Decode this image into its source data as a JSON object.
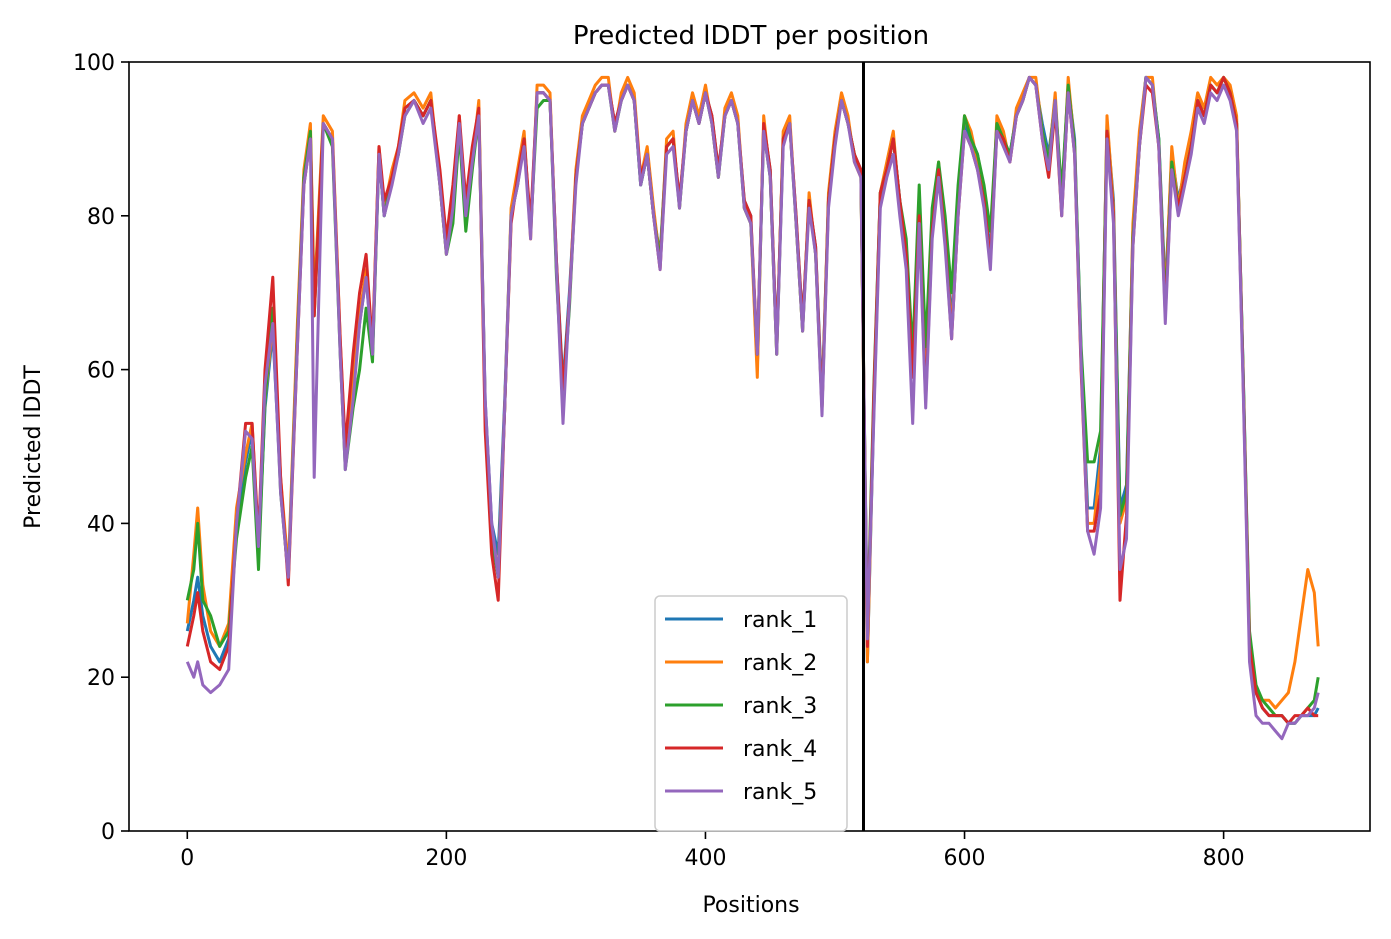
{
  "chart_data": {
    "type": "line",
    "title": "Predicted lDDT per position",
    "xlabel": "Positions",
    "ylabel": "Predicted lDDT",
    "xlim": [
      -45,
      913
    ],
    "ylim": [
      0,
      100
    ],
    "xticks": [
      0,
      200,
      400,
      600,
      800
    ],
    "yticks": [
      0,
      20,
      40,
      60,
      80,
      100
    ],
    "grid": false,
    "legend_position": "lower-center",
    "vertical_lines": [
      {
        "x": 522,
        "color": "#000000"
      }
    ],
    "x": [
      0,
      5,
      8,
      12,
      18,
      25,
      32,
      38,
      45,
      50,
      55,
      60,
      66,
      72,
      78,
      85,
      90,
      95,
      98,
      105,
      112,
      118,
      122,
      128,
      133,
      138,
      143,
      148,
      152,
      158,
      163,
      168,
      175,
      182,
      188,
      195,
      200,
      205,
      210,
      215,
      220,
      225,
      230,
      235,
      240,
      245,
      250,
      255,
      260,
      265,
      270,
      275,
      280,
      285,
      290,
      295,
      300,
      305,
      310,
      315,
      320,
      325,
      330,
      335,
      340,
      345,
      350,
      355,
      360,
      365,
      370,
      375,
      380,
      385,
      390,
      395,
      400,
      405,
      410,
      415,
      420,
      425,
      430,
      435,
      440,
      445,
      450,
      455,
      460,
      465,
      470,
      475,
      480,
      485,
      490,
      495,
      500,
      505,
      510,
      515,
      520,
      525,
      530,
      535,
      540,
      545,
      550,
      555,
      560,
      565,
      570,
      575,
      580,
      585,
      590,
      595,
      600,
      605,
      610,
      615,
      620,
      625,
      630,
      635,
      640,
      645,
      650,
      655,
      660,
      665,
      670,
      675,
      680,
      685,
      690,
      695,
      700,
      705,
      710,
      715,
      720,
      725,
      730,
      735,
      740,
      745,
      750,
      755,
      760,
      765,
      770,
      775,
      780,
      785,
      790,
      795,
      800,
      805,
      810,
      815,
      820,
      825,
      830,
      835,
      840,
      845,
      850,
      855,
      860,
      865,
      870,
      873
    ],
    "series": [
      {
        "name": "rank_1",
        "color": "#1f77b4",
        "values": [
          26,
          30,
          33,
          28,
          24,
          22,
          25,
          40,
          48,
          52,
          36,
          55,
          65,
          45,
          33,
          65,
          85,
          91,
          68,
          92,
          90,
          63,
          48,
          58,
          66,
          72,
          62,
          88,
          80,
          85,
          88,
          94,
          95,
          93,
          95,
          85,
          76,
          82,
          92,
          80,
          88,
          94,
          56,
          40,
          36,
          56,
          80,
          85,
          90,
          78,
          96,
          96,
          95,
          74,
          58,
          70,
          85,
          92,
          94,
          96,
          97,
          97,
          92,
          95,
          97,
          95,
          84,
          88,
          80,
          75,
          89,
          90,
          82,
          91,
          95,
          92,
          96,
          93,
          86,
          93,
          95,
          92,
          82,
          80,
          60,
          92,
          86,
          63,
          90,
          92,
          80,
          66,
          82,
          76,
          56,
          82,
          90,
          95,
          92,
          88,
          86,
          22,
          55,
          82,
          86,
          90,
          82,
          75,
          60,
          82,
          58,
          80,
          86,
          78,
          66,
          82,
          92,
          90,
          88,
          83,
          75,
          92,
          90,
          88,
          93,
          95,
          98,
          97,
          92,
          88,
          95,
          82,
          97,
          90,
          62,
          42,
          42,
          50,
          92,
          82,
          42,
          45,
          78,
          90,
          98,
          97,
          90,
          70,
          88,
          82,
          86,
          90,
          95,
          93,
          97,
          96,
          98,
          96,
          92,
          60,
          25,
          18,
          16,
          15,
          15,
          15,
          14,
          14,
          15,
          15,
          15,
          16
        ],
        "_": null
      },
      {
        "name": "rank_2",
        "color": "#ff7f0e",
        "values": [
          27,
          36,
          42,
          32,
          26,
          24,
          27,
          42,
          49,
          53,
          37,
          56,
          66,
          46,
          34,
          66,
          86,
          92,
          69,
          93,
          91,
          64,
          49,
          59,
          67,
          73,
          63,
          89,
          81,
          86,
          89,
          95,
          96,
          94,
          96,
          84,
          75,
          81,
          93,
          79,
          87,
          95,
          55,
          38,
          34,
          55,
          81,
          86,
          91,
          77,
          97,
          97,
          96,
          73,
          57,
          69,
          86,
          93,
          95,
          97,
          98,
          98,
          91,
          96,
          98,
          96,
          85,
          89,
          81,
          74,
          90,
          91,
          81,
          92,
          96,
          93,
          97,
          92,
          85,
          94,
          96,
          93,
          81,
          79,
          59,
          93,
          85,
          62,
          91,
          93,
          79,
          65,
          83,
          75,
          55,
          83,
          91,
          96,
          93,
          87,
          85,
          22,
          56,
          83,
          87,
          91,
          81,
          76,
          61,
          81,
          57,
          79,
          87,
          77,
          65,
          81,
          93,
          91,
          87,
          82,
          74,
          93,
          91,
          87,
          94,
          96,
          98,
          98,
          91,
          87,
          96,
          81,
          98,
          89,
          61,
          40,
          40,
          48,
          93,
          81,
          40,
          43,
          79,
          91,
          98,
          98,
          89,
          69,
          89,
          81,
          87,
          91,
          96,
          94,
          98,
          97,
          98,
          97,
          93,
          59,
          24,
          18,
          17,
          17,
          16,
          17,
          18,
          22,
          28,
          34,
          31,
          24
        ],
        "_": null
      },
      {
        "name": "rank_3",
        "color": "#2ca02c",
        "values": [
          30,
          34,
          40,
          30,
          28,
          24,
          26,
          38,
          46,
          50,
          34,
          56,
          68,
          44,
          33,
          64,
          85,
          91,
          67,
          92,
          89,
          62,
          47,
          55,
          60,
          68,
          61,
          88,
          80,
          85,
          88,
          93,
          95,
          93,
          95,
          84,
          75,
          79,
          91,
          78,
          86,
          93,
          55,
          38,
          33,
          55,
          80,
          84,
          90,
          78,
          94,
          95,
          95,
          72,
          56,
          68,
          85,
          92,
          94,
          96,
          97,
          97,
          91,
          95,
          97,
          95,
          84,
          88,
          80,
          74,
          89,
          90,
          81,
          91,
          95,
          92,
          96,
          92,
          85,
          93,
          95,
          92,
          81,
          79,
          62,
          91,
          85,
          62,
          90,
          92,
          79,
          65,
          82,
          75,
          55,
          82,
          90,
          95,
          92,
          88,
          85,
          26,
          58,
          83,
          86,
          90,
          82,
          77,
          62,
          84,
          63,
          81,
          87,
          80,
          70,
          84,
          93,
          90,
          88,
          84,
          78,
          92,
          90,
          88,
          93,
          95,
          98,
          97,
          91,
          87,
          95,
          83,
          97,
          89,
          63,
          48,
          48,
          52,
          91,
          80,
          41,
          44,
          77,
          89,
          98,
          97,
          90,
          68,
          87,
          81,
          85,
          89,
          95,
          93,
          97,
          96,
          98,
          96,
          92,
          60,
          26,
          19,
          17,
          16,
          15,
          15,
          14,
          14,
          15,
          16,
          17,
          20
        ],
        "_": null
      },
      {
        "name": "rank_4",
        "color": "#d62728",
        "values": [
          24,
          28,
          31,
          26,
          22,
          21,
          24,
          40,
          53,
          53,
          38,
          60,
          72,
          46,
          32,
          63,
          84,
          90,
          67,
          92,
          90,
          64,
          50,
          62,
          70,
          75,
          63,
          89,
          82,
          85,
          89,
          94,
          95,
          93,
          95,
          86,
          77,
          84,
          93,
          82,
          89,
          94,
          52,
          36,
          30,
          55,
          79,
          85,
          90,
          79,
          96,
          96,
          95,
          74,
          57,
          69,
          85,
          92,
          94,
          96,
          97,
          97,
          92,
          95,
          97,
          95,
          85,
          88,
          80,
          73,
          89,
          90,
          82,
          91,
          95,
          92,
          96,
          93,
          86,
          93,
          95,
          92,
          82,
          80,
          62,
          92,
          86,
          63,
          90,
          92,
          80,
          66,
          82,
          76,
          55,
          82,
          90,
          95,
          92,
          88,
          86,
          24,
          57,
          83,
          86,
          90,
          82,
          75,
          59,
          80,
          56,
          78,
          86,
          77,
          64,
          80,
          91,
          89,
          86,
          82,
          74,
          91,
          90,
          87,
          93,
          95,
          98,
          97,
          90,
          85,
          94,
          80,
          96,
          88,
          60,
          39,
          39,
          44,
          91,
          80,
          30,
          41,
          76,
          89,
          97,
          96,
          89,
          67,
          86,
          81,
          85,
          89,
          95,
          93,
          97,
          96,
          98,
          96,
          92,
          59,
          24,
          18,
          16,
          15,
          15,
          15,
          14,
          15,
          15,
          16,
          15,
          15
        ],
        "_": null
      },
      {
        "name": "rank_5",
        "color": "#9467bd",
        "values": [
          22,
          20,
          22,
          19,
          18,
          19,
          21,
          40,
          52,
          51,
          37,
          58,
          66,
          44,
          33,
          63,
          84,
          90,
          46,
          92,
          90,
          62,
          47,
          56,
          66,
          72,
          62,
          88,
          80,
          84,
          88,
          93,
          95,
          92,
          94,
          84,
          75,
          81,
          92,
          80,
          87,
          93,
          56,
          40,
          33,
          55,
          80,
          84,
          89,
          77,
          96,
          96,
          95,
          73,
          53,
          69,
          84,
          92,
          94,
          96,
          97,
          97,
          91,
          95,
          97,
          95,
          84,
          88,
          80,
          73,
          88,
          89,
          81,
          91,
          95,
          92,
          96,
          92,
          85,
          93,
          95,
          92,
          81,
          79,
          62,
          91,
          85,
          62,
          89,
          92,
          79,
          65,
          81,
          75,
          54,
          81,
          89,
          95,
          92,
          87,
          85,
          25,
          54,
          81,
          85,
          88,
          80,
          73,
          53,
          79,
          55,
          77,
          85,
          76,
          64,
          80,
          91,
          89,
          86,
          81,
          73,
          91,
          89,
          87,
          93,
          95,
          98,
          97,
          90,
          86,
          95,
          80,
          96,
          88,
          61,
          39,
          36,
          42,
          90,
          79,
          34,
          38,
          76,
          89,
          98,
          97,
          89,
          66,
          86,
          80,
          84,
          88,
          94,
          92,
          96,
          95,
          97,
          95,
          91,
          58,
          22,
          15,
          14,
          14,
          13,
          12,
          14,
          14,
          15,
          15,
          16,
          18
        ],
        "_": null
      }
    ]
  }
}
